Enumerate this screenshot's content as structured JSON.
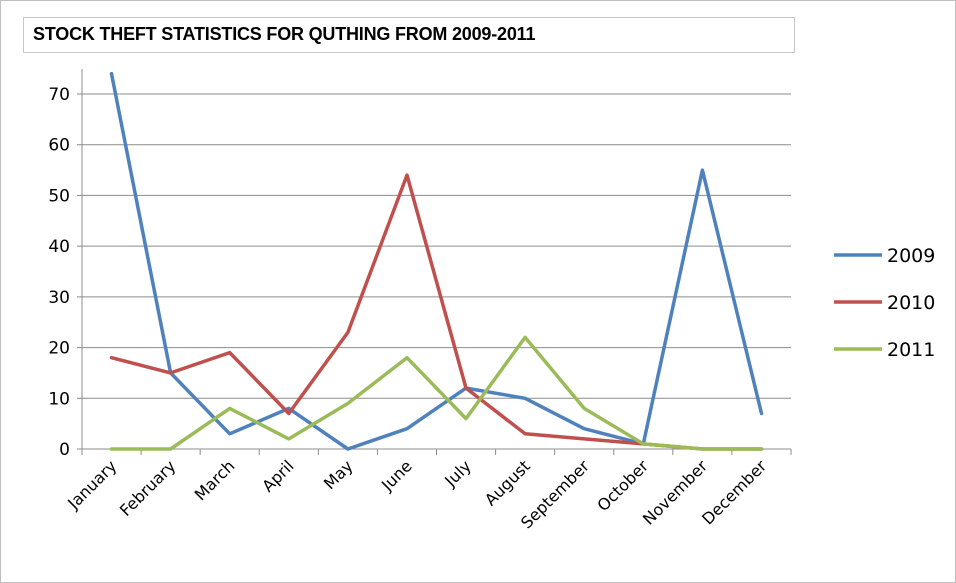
{
  "chart_data": {
    "type": "line",
    "title": "STOCK THEFT STATISTICS FOR QUTHING FROM 2009-2011",
    "xlabel": "",
    "ylabel": "",
    "categories": [
      "January",
      "February",
      "March",
      "April",
      "May",
      "June",
      "July",
      "August",
      "September",
      "October",
      "November",
      "December"
    ],
    "ylim": [
      0,
      70
    ],
    "yticks": [
      0,
      10,
      20,
      30,
      40,
      50,
      60,
      70
    ],
    "grid": true,
    "legend_position": "right",
    "series": [
      {
        "name": "2009",
        "color": "#4f81bd",
        "values": [
          74,
          15,
          3,
          8,
          0,
          4,
          12,
          10,
          4,
          1,
          55,
          7
        ]
      },
      {
        "name": "2010",
        "color": "#c0504d",
        "values": [
          18,
          15,
          19,
          7,
          23,
          54,
          12,
          3,
          2,
          1,
          0,
          0
        ]
      },
      {
        "name": "2011",
        "color": "#9bbb59",
        "values": [
          0,
          0,
          8,
          2,
          9,
          18,
          6,
          22,
          8,
          1,
          0,
          0
        ]
      }
    ]
  }
}
